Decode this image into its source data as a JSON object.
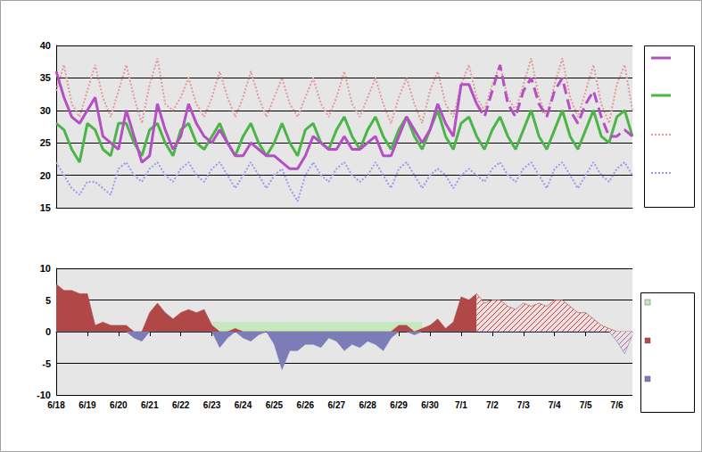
{
  "chart_data": [
    {
      "type": "line",
      "categories": [
        "6/18",
        null,
        null,
        null,
        "6/19",
        null,
        null,
        null,
        "6/20",
        null,
        null,
        null,
        "6/21",
        null,
        null,
        null,
        "6/22",
        null,
        null,
        null,
        "6/23",
        null,
        null,
        null,
        "6/24",
        null,
        null,
        null,
        "6/25",
        null,
        null,
        null,
        "6/26",
        null,
        null,
        null,
        "6/27",
        null,
        null,
        null,
        "6/28",
        null,
        null,
        null,
        "6/29",
        null,
        null,
        null,
        "6/30",
        null,
        null,
        null,
        "7/1",
        null,
        null,
        null,
        "7/2",
        null,
        null,
        null,
        "7/3",
        null,
        null,
        null,
        "7/4",
        null,
        null,
        null,
        "7/5",
        null,
        null,
        null,
        "7/6",
        null,
        null
      ],
      "ylim": [
        15,
        40
      ],
      "yticks": [
        15,
        20,
        25,
        30,
        35,
        40
      ],
      "grid": true,
      "tick_labels": "y",
      "series": [
        {
          "color": "#e39a9a",
          "line_style": "dotted",
          "values": [
            33,
            37,
            31,
            29,
            33,
            37,
            32,
            29,
            33,
            37,
            32,
            28,
            34,
            38,
            31,
            30,
            32,
            35,
            31,
            29,
            32,
            36,
            32,
            29,
            32,
            36,
            32,
            29,
            32,
            35,
            31,
            29,
            32,
            35,
            31,
            29,
            32,
            36,
            31,
            29,
            32,
            35,
            31,
            28,
            32,
            35,
            31,
            28,
            33,
            36,
            31,
            29,
            34,
            37,
            32,
            30,
            34,
            37,
            32,
            30,
            34,
            38,
            32,
            29,
            34,
            38,
            32,
            29,
            33,
            37,
            31,
            28,
            34,
            37,
            30
          ]
        },
        {
          "color": "#9a9aee",
          "line_style": "dotted",
          "values": [
            22,
            20,
            18,
            17,
            19,
            19,
            18,
            17,
            21,
            22,
            20,
            19,
            21,
            22,
            20,
            19,
            21,
            22,
            20,
            19,
            21,
            22,
            20,
            18,
            20,
            22,
            20,
            18,
            20,
            21,
            18,
            16,
            20,
            22,
            20,
            19,
            21,
            22,
            20,
            19,
            20,
            22,
            20,
            18,
            21,
            22,
            20,
            18,
            20,
            21,
            20,
            18,
            20,
            21,
            20,
            19,
            21,
            22,
            20,
            19,
            21,
            22,
            20,
            18,
            21,
            22,
            20,
            18,
            20,
            22,
            20,
            19,
            21,
            22,
            20
          ]
        },
        {
          "color": "#4cb548",
          "line_style": "solid",
          "values": [
            28,
            27,
            24,
            22,
            28,
            27,
            24,
            23,
            28,
            28,
            25,
            23,
            27,
            28,
            25,
            23,
            27,
            28,
            25,
            24,
            26,
            28,
            25,
            23,
            26,
            28,
            25,
            23,
            25,
            28,
            25,
            23,
            27,
            28,
            25,
            24,
            27,
            29,
            26,
            24,
            27,
            29,
            26,
            24,
            27,
            29,
            26,
            24,
            27,
            30,
            26,
            24,
            28,
            29,
            26,
            24,
            27,
            29,
            26,
            24,
            27,
            30,
            26,
            24,
            27,
            30,
            26,
            24,
            27,
            30,
            26,
            25,
            29,
            30,
            26
          ]
        },
        {
          "color": "#b450c4",
          "line_style": "solid",
          "values": [
            36,
            32,
            29,
            28,
            30,
            32,
            26,
            25,
            24,
            30,
            26,
            22,
            23,
            31,
            27,
            24,
            26,
            31,
            28,
            26,
            25,
            27,
            25,
            23,
            23,
            25,
            24,
            23,
            23,
            22,
            21,
            21,
            23,
            26,
            25,
            24,
            24,
            26,
            24,
            24,
            25,
            26,
            23,
            23,
            26,
            29,
            27,
            25,
            27,
            31,
            28,
            26,
            34,
            34,
            31,
            null,
            null,
            null,
            null,
            null,
            null,
            null,
            null,
            null,
            null,
            null,
            null,
            null,
            null,
            null,
            null,
            null,
            null,
            null,
            null
          ]
        },
        {
          "color": "#b450c4",
          "line_style": "dashed",
          "values": [
            null,
            null,
            null,
            null,
            null,
            null,
            null,
            null,
            null,
            null,
            null,
            null,
            null,
            null,
            null,
            null,
            null,
            null,
            null,
            null,
            null,
            null,
            null,
            null,
            null,
            null,
            null,
            null,
            null,
            null,
            null,
            null,
            null,
            null,
            null,
            null,
            null,
            null,
            null,
            null,
            null,
            null,
            null,
            null,
            null,
            null,
            null,
            null,
            null,
            null,
            null,
            null,
            null,
            null,
            31,
            29,
            33,
            37,
            31,
            29,
            33,
            35,
            31,
            29,
            33,
            35,
            30,
            28,
            31,
            33,
            29,
            26,
            26,
            27,
            26
          ]
        }
      ]
    },
    {
      "type": "area",
      "categories": [
        "6/18",
        null,
        null,
        null,
        "6/19",
        null,
        null,
        null,
        "6/20",
        null,
        null,
        null,
        "6/21",
        null,
        null,
        null,
        "6/22",
        null,
        null,
        null,
        "6/23",
        null,
        null,
        null,
        "6/24",
        null,
        null,
        null,
        "6/25",
        null,
        null,
        null,
        "6/26",
        null,
        null,
        null,
        "6/27",
        null,
        null,
        null,
        "6/28",
        null,
        null,
        null,
        "6/29",
        null,
        null,
        null,
        "6/30",
        null,
        null,
        null,
        "7/1",
        null,
        null,
        null,
        "7/2",
        null,
        null,
        null,
        "7/3",
        null,
        null,
        null,
        "7/4",
        null,
        null,
        null,
        "7/5",
        null,
        null,
        null,
        "7/6",
        null,
        null
      ],
      "ylim": [
        -10,
        10
      ],
      "yticks": [
        -10,
        -5,
        0,
        5,
        10
      ],
      "grid": true,
      "series": [
        {
          "color": "#c6e8bf",
          "values": [
            null,
            null,
            null,
            null,
            null,
            null,
            null,
            null,
            null,
            null,
            null,
            null,
            null,
            null,
            null,
            null,
            null,
            null,
            null,
            null,
            1.5,
            1.5,
            1.5,
            1.5,
            1.5,
            1.5,
            1.5,
            1.5,
            1.5,
            1.5,
            1.5,
            1.5,
            1.5,
            1.5,
            1.5,
            1.5,
            1.5,
            1.5,
            1.5,
            1.5,
            1.5,
            1.5,
            1.5,
            1.5,
            1.5,
            1.5,
            1.5,
            1.5,
            null,
            null,
            null,
            null,
            null,
            null,
            null,
            null,
            null,
            null,
            null,
            null,
            null,
            null,
            null,
            null,
            null,
            null,
            null,
            null,
            null,
            null,
            null,
            null,
            null,
            null,
            null
          ]
        },
        {
          "color": "#b04848",
          "values": [
            7.5,
            6.5,
            6.5,
            6,
            6,
            1,
            1.5,
            1,
            1,
            1,
            0,
            0,
            3,
            4.5,
            3,
            2,
            3,
            3.5,
            3,
            3.5,
            1,
            0,
            0,
            0.5,
            0,
            0,
            0,
            0,
            0,
            0,
            0,
            0,
            0,
            0,
            0,
            0,
            0,
            0,
            0,
            0,
            0,
            0,
            0,
            0,
            1,
            1,
            0,
            0.5,
            1,
            2,
            0.5,
            1.5,
            5.5,
            5,
            6,
            null,
            null,
            null,
            null,
            null,
            null,
            null,
            null,
            null,
            null,
            null,
            null,
            null,
            null,
            null,
            null,
            null,
            null,
            null,
            null
          ]
        },
        {
          "color": "#7c7cb8",
          "values": [
            0,
            0,
            0,
            0,
            0,
            0,
            0,
            0,
            0,
            0,
            -1,
            -1.5,
            0,
            0,
            0,
            0,
            0,
            0,
            0,
            0,
            0,
            -2.5,
            -1,
            0,
            -1,
            -1.5,
            -0.5,
            0,
            -2,
            -6,
            -3,
            -3,
            -2,
            -2,
            -2.5,
            -1,
            -1.5,
            -3,
            -2,
            -2.5,
            -1.5,
            -2,
            -3,
            -1,
            0,
            0,
            -0.5,
            0,
            0,
            0,
            0,
            0,
            0,
            0,
            0,
            null,
            null,
            null,
            null,
            null,
            null,
            null,
            null,
            null,
            null,
            null,
            null,
            null,
            null,
            null,
            null,
            null,
            null,
            null,
            null
          ]
        },
        {
          "color": "#b04848",
          "line_style": "hatched",
          "values": [
            null,
            null,
            null,
            null,
            null,
            null,
            null,
            null,
            null,
            null,
            null,
            null,
            null,
            null,
            null,
            null,
            null,
            null,
            null,
            null,
            null,
            null,
            null,
            null,
            null,
            null,
            null,
            null,
            null,
            null,
            null,
            null,
            null,
            null,
            null,
            null,
            null,
            null,
            null,
            null,
            null,
            null,
            null,
            null,
            null,
            null,
            null,
            null,
            null,
            null,
            null,
            null,
            null,
            null,
            6,
            4.5,
            5,
            5,
            4,
            3.5,
            4.5,
            4,
            4.5,
            4,
            5,
            5,
            4,
            3,
            3,
            2,
            1,
            0.5,
            0,
            0,
            0
          ]
        },
        {
          "color": "#7c7cb8",
          "line_style": "hatched",
          "values": [
            null,
            null,
            null,
            null,
            null,
            null,
            null,
            null,
            null,
            null,
            null,
            null,
            null,
            null,
            null,
            null,
            null,
            null,
            null,
            null,
            null,
            null,
            null,
            null,
            null,
            null,
            null,
            null,
            null,
            null,
            null,
            null,
            null,
            null,
            null,
            null,
            null,
            null,
            null,
            null,
            null,
            null,
            null,
            null,
            null,
            null,
            null,
            null,
            null,
            null,
            null,
            null,
            null,
            null,
            0,
            0,
            0,
            0,
            0,
            0,
            0,
            0,
            0,
            0,
            0,
            0,
            0,
            0,
            0,
            0,
            0,
            0,
            -1.5,
            -3.5,
            -0.5
          ]
        }
      ]
    }
  ]
}
